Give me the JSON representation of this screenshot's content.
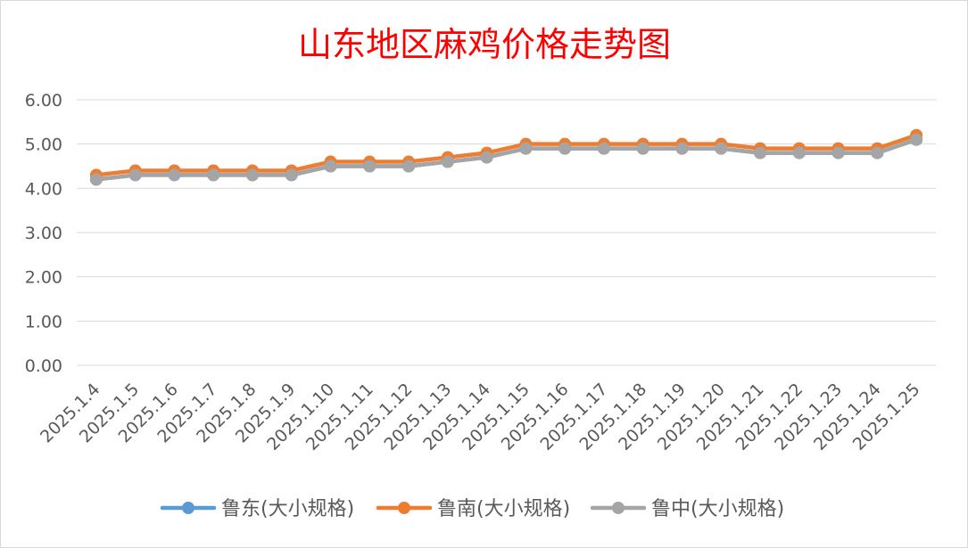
{
  "chart_data": {
    "type": "line",
    "title": "山东地区麻鸡价格走势图",
    "categories": [
      "2025.1.4",
      "2025.1.5",
      "2025.1.6",
      "2025.1.7",
      "2025.1.8",
      "2025.1.9",
      "2025.1.10",
      "2025.1.11",
      "2025.1.12",
      "2025.1.13",
      "2025.1.14",
      "2025.1.15",
      "2025.1.16",
      "2025.1.17",
      "2025.1.18",
      "2025.1.19",
      "2025.1.20",
      "2025.1.21",
      "2025.1.22",
      "2025.1.23",
      "2025.1.24",
      "2025.1.25"
    ],
    "ylim": [
      0,
      6
    ],
    "yticks": [
      "0.00",
      "1.00",
      "2.00",
      "3.00",
      "4.00",
      "5.00",
      "6.00"
    ],
    "grid": true,
    "legend_position": "bottom",
    "series": [
      {
        "name": "鲁东(大小规格)",
        "color": "#5b9bd5",
        "values": [
          4.2,
          4.3,
          4.3,
          4.3,
          4.3,
          4.3,
          4.5,
          4.5,
          4.5,
          4.6,
          4.7,
          4.9,
          4.9,
          4.9,
          4.9,
          4.9,
          4.9,
          4.8,
          4.8,
          4.8,
          4.8,
          5.1
        ]
      },
      {
        "name": "鲁南(大小规格)",
        "color": "#ed7d31",
        "values": [
          4.3,
          4.4,
          4.4,
          4.4,
          4.4,
          4.4,
          4.6,
          4.6,
          4.6,
          4.7,
          4.8,
          5.0,
          5.0,
          5.0,
          5.0,
          5.0,
          5.0,
          4.9,
          4.9,
          4.9,
          4.9,
          5.2
        ]
      },
      {
        "name": "鲁中(大小规格)",
        "color": "#a5a5a5",
        "values": [
          4.2,
          4.3,
          4.3,
          4.3,
          4.3,
          4.3,
          4.5,
          4.5,
          4.5,
          4.6,
          4.7,
          4.9,
          4.9,
          4.9,
          4.9,
          4.9,
          4.9,
          4.8,
          4.8,
          4.8,
          4.8,
          5.1
        ]
      }
    ]
  }
}
